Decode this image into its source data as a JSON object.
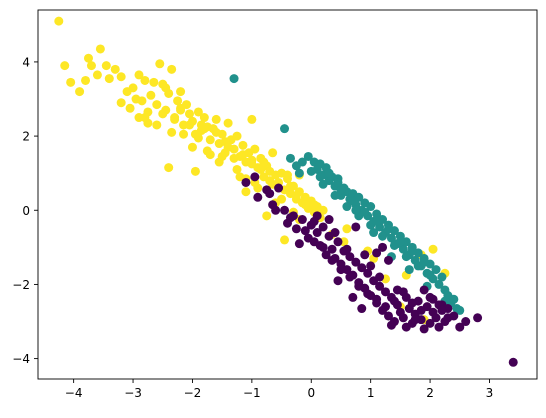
{
  "chart_data": {
    "type": "scatter",
    "title": "",
    "xlabel": "",
    "ylabel": "",
    "xlim": [
      -4.6,
      3.8
    ],
    "ylim": [
      -4.55,
      5.4
    ],
    "xticks": [
      -4,
      -3,
      -2,
      -1,
      0,
      1,
      2,
      3
    ],
    "yticks": [
      -4,
      -2,
      0,
      2,
      4
    ],
    "grid": false,
    "legend": "none",
    "series": [
      {
        "color": "#fde725",
        "x": [
          -4.25,
          -4.15,
          -4.05,
          -3.9,
          -3.8,
          -3.75,
          -3.7,
          -3.6,
          -3.55,
          -3.45,
          -3.4,
          -3.3,
          -3.2,
          -3.1,
          -3.05,
          -3.0,
          -2.95,
          -2.9,
          -2.85,
          -2.8,
          -2.75,
          -2.7,
          -2.65,
          -2.6,
          -2.55,
          -2.5,
          -2.45,
          -2.4,
          -2.35,
          -2.3,
          -2.25,
          -2.2,
          -2.15,
          -2.1,
          -2.05,
          -2.0,
          -1.95,
          -1.9,
          -1.85,
          -1.8,
          -1.75,
          -1.7,
          -1.65,
          -1.6,
          -1.55,
          -1.5,
          -1.45,
          -1.4,
          -1.35,
          -1.3,
          -1.25,
          -1.2,
          -1.15,
          -1.1,
          -1.05,
          -1.0,
          -0.95,
          -0.9,
          -0.85,
          -0.8,
          -0.75,
          -0.7,
          -0.65,
          -0.6,
          -0.55,
          -0.5,
          -0.45,
          -0.4,
          -0.35,
          -0.3,
          -0.25,
          -0.2,
          -0.15,
          -0.1,
          -0.05,
          0.0,
          0.05,
          0.1,
          0.15,
          0.2,
          -2.9,
          -2.75,
          -2.5,
          -2.35,
          -2.2,
          -2.05,
          -1.9,
          -1.75,
          -1.6,
          -1.45,
          -1.3,
          -1.15,
          -1.0,
          -0.85,
          -0.7,
          -0.55,
          -0.4,
          -0.25,
          -0.1,
          0.05,
          -3.2,
          -2.6,
          -2.45,
          -2.3,
          -2.15,
          -2.0,
          -1.85,
          -1.7,
          -1.55,
          -1.4,
          -1.25,
          -1.1,
          -0.95,
          -0.8,
          -0.65,
          -0.5,
          -0.35,
          -0.2,
          -2.8,
          -2.2,
          -1.8,
          -1.5,
          -1.2,
          -0.9,
          -0.6,
          -0.3,
          1.5,
          1.6,
          1.9,
          -2.4,
          -1.95,
          -1.1,
          -0.75,
          -0.45,
          0.1,
          0.6,
          0.95,
          1.25,
          1.85,
          2.05,
          2.25,
          0.35,
          -1.0,
          -0.2,
          0.55,
          1.05
        ],
        "y": [
          5.1,
          3.9,
          3.45,
          3.2,
          3.5,
          4.1,
          3.9,
          3.65,
          4.35,
          3.9,
          3.55,
          3.8,
          3.6,
          3.2,
          2.75,
          3.3,
          3.0,
          3.65,
          2.95,
          3.5,
          2.65,
          3.1,
          3.45,
          2.85,
          3.95,
          3.4,
          2.7,
          3.15,
          3.8,
          2.5,
          2.95,
          3.2,
          2.3,
          2.85,
          2.6,
          2.4,
          2.05,
          2.65,
          2.15,
          2.5,
          2.25,
          1.9,
          2.2,
          2.45,
          1.8,
          2.05,
          1.55,
          2.35,
          1.9,
          1.65,
          2.0,
          1.45,
          1.75,
          1.3,
          1.55,
          1.35,
          1.65,
          1.15,
          1.4,
          0.9,
          1.2,
          1.05,
          0.7,
          0.95,
          0.75,
          1.0,
          0.55,
          0.85,
          0.45,
          0.65,
          0.3,
          0.5,
          0.2,
          0.35,
          0.05,
          0.25,
          -0.05,
          0.1,
          -0.2,
          0.0,
          2.5,
          2.35,
          2.6,
          2.1,
          2.75,
          2.3,
          1.95,
          1.6,
          2.1,
          1.85,
          1.4,
          1.5,
          1.25,
          1.1,
          0.8,
          0.6,
          0.95,
          0.4,
          0.15,
          0.15,
          2.9,
          2.3,
          3.3,
          2.45,
          2.05,
          1.7,
          2.3,
          1.5,
          1.3,
          1.7,
          1.1,
          0.85,
          0.75,
          1.3,
          1.55,
          0.3,
          0.65,
          0.95,
          2.5,
          2.7,
          2.2,
          1.45,
          0.9,
          0.6,
          0.2,
          -0.05,
          -2.6,
          -1.75,
          -2.95,
          1.15,
          1.05,
          0.5,
          -0.15,
          -0.8,
          -0.1,
          -0.5,
          -1.1,
          -1.85,
          -1.2,
          -1.05,
          -1.7,
          -0.65,
          2.45,
          -0.25,
          -0.85,
          -1.3
        ]
      },
      {
        "color": "#21918c",
        "x": [
          -1.3,
          -0.45,
          -0.35,
          -0.25,
          -0.15,
          -0.05,
          0.05,
          0.1,
          0.15,
          0.2,
          0.25,
          0.3,
          0.35,
          0.4,
          0.45,
          0.5,
          0.55,
          0.6,
          0.65,
          0.7,
          0.75,
          0.8,
          0.85,
          0.9,
          0.95,
          1.0,
          1.05,
          1.1,
          1.15,
          1.2,
          1.25,
          1.3,
          1.35,
          1.4,
          1.45,
          1.5,
          1.55,
          1.6,
          1.65,
          1.7,
          1.75,
          1.8,
          1.85,
          1.9,
          1.95,
          2.0,
          2.05,
          2.1,
          2.15,
          2.2,
          2.25,
          2.3,
          2.35,
          2.4,
          2.45,
          2.5,
          0.0,
          0.2,
          0.4,
          0.6,
          0.8,
          1.0,
          1.2,
          1.4,
          1.6,
          1.8,
          2.0,
          0.3,
          0.5,
          0.7,
          0.9,
          1.1,
          1.3,
          1.5,
          1.7,
          1.9,
          -0.2,
          0.15,
          0.45,
          0.75,
          1.05,
          1.35,
          1.65,
          1.95,
          2.25
        ],
        "y": [
          3.55,
          2.2,
          1.4,
          1.2,
          1.3,
          1.45,
          1.3,
          1.1,
          1.25,
          0.95,
          1.15,
          0.8,
          0.9,
          0.65,
          0.85,
          0.4,
          0.6,
          0.5,
          0.3,
          0.45,
          0.15,
          0.35,
          0.0,
          0.2,
          -0.15,
          0.1,
          -0.3,
          -0.1,
          -0.45,
          -0.25,
          -0.6,
          -0.4,
          -0.75,
          -0.55,
          -0.9,
          -0.7,
          -1.05,
          -0.85,
          -1.2,
          -1.0,
          -1.35,
          -1.15,
          -1.5,
          -1.3,
          -1.7,
          -1.45,
          -1.85,
          -1.6,
          -2.0,
          -1.8,
          -2.15,
          -2.3,
          -2.5,
          -2.4,
          -2.65,
          -2.7,
          1.05,
          0.7,
          0.4,
          0.1,
          -0.15,
          -0.4,
          -0.7,
          -0.95,
          -1.25,
          -1.5,
          -1.75,
          1.0,
          0.55,
          0.25,
          -0.05,
          -0.3,
          -0.5,
          -0.85,
          -1.1,
          -1.4,
          1.0,
          0.9,
          0.75,
          0.0,
          -0.6,
          -1.25,
          -1.6,
          -2.05,
          -2.45
        ]
      },
      {
        "color": "#440154",
        "x": [
          -1.1,
          -0.9,
          -0.75,
          -0.65,
          -0.55,
          -0.45,
          -0.4,
          -0.3,
          -0.25,
          -0.15,
          -0.05,
          0.0,
          0.1,
          0.15,
          0.2,
          0.25,
          0.3,
          0.35,
          0.4,
          0.45,
          0.5,
          0.55,
          0.6,
          0.65,
          0.7,
          0.75,
          0.8,
          0.85,
          0.9,
          0.95,
          1.0,
          1.05,
          1.1,
          1.15,
          1.2,
          1.25,
          1.3,
          1.35,
          1.4,
          1.45,
          1.5,
          1.55,
          1.6,
          1.65,
          1.7,
          1.75,
          1.8,
          1.85,
          1.9,
          1.95,
          2.0,
          2.05,
          2.1,
          2.15,
          2.2,
          2.25,
          2.3,
          2.4,
          2.5,
          2.6,
          2.8,
          3.4,
          -0.6,
          -0.35,
          -0.1,
          0.05,
          0.2,
          0.35,
          0.5,
          0.65,
          0.8,
          0.95,
          1.1,
          1.25,
          1.4,
          1.55,
          1.7,
          1.85,
          2.0,
          2.15,
          2.3,
          -0.7,
          -0.2,
          0.3,
          0.45,
          0.7,
          0.85,
          1.0,
          1.15,
          1.3,
          1.45,
          1.6,
          1.75,
          1.9,
          2.05,
          2.2,
          0.1,
          0.6,
          1.1,
          1.2,
          0.75,
          1.35,
          -0.95,
          0.05,
          0.4,
          0.9
        ],
        "y": [
          0.75,
          0.35,
          0.55,
          0.15,
          0.6,
          0.0,
          -0.35,
          -0.15,
          -0.5,
          -0.25,
          -0.75,
          -0.4,
          -0.6,
          -0.95,
          -0.45,
          -1.2,
          -0.7,
          -1.05,
          -1.3,
          -0.85,
          -1.45,
          -1.1,
          -1.6,
          -1.25,
          -1.75,
          -1.4,
          -1.95,
          -1.55,
          -2.1,
          -1.7,
          -2.3,
          -1.9,
          -2.5,
          -2.05,
          -2.7,
          -2.2,
          -2.85,
          -2.35,
          -3.0,
          -2.55,
          -2.75,
          -2.9,
          -3.15,
          -2.65,
          -3.05,
          -2.8,
          -2.45,
          -2.95,
          -3.2,
          -2.6,
          -3.05,
          -2.75,
          -2.9,
          -3.15,
          -2.55,
          -3.0,
          -2.65,
          -2.85,
          -3.15,
          -3.0,
          -2.9,
          -4.1,
          0.0,
          -0.2,
          -0.55,
          -0.85,
          -1.0,
          -1.35,
          -1.6,
          -1.8,
          -2.05,
          -2.25,
          -2.4,
          -2.6,
          -2.45,
          -2.2,
          -2.5,
          -2.7,
          -2.35,
          -2.55,
          -2.9,
          0.45,
          -0.9,
          -0.25,
          -1.9,
          -2.35,
          -2.65,
          -1.5,
          -1.8,
          -1.35,
          -2.15,
          -2.35,
          -2.95,
          -2.15,
          -2.4,
          -2.7,
          -0.15,
          -1.05,
          -1.15,
          -1.0,
          -0.45,
          -3.1,
          0.9,
          -0.3,
          -0.6,
          -1.2
        ]
      }
    ]
  }
}
